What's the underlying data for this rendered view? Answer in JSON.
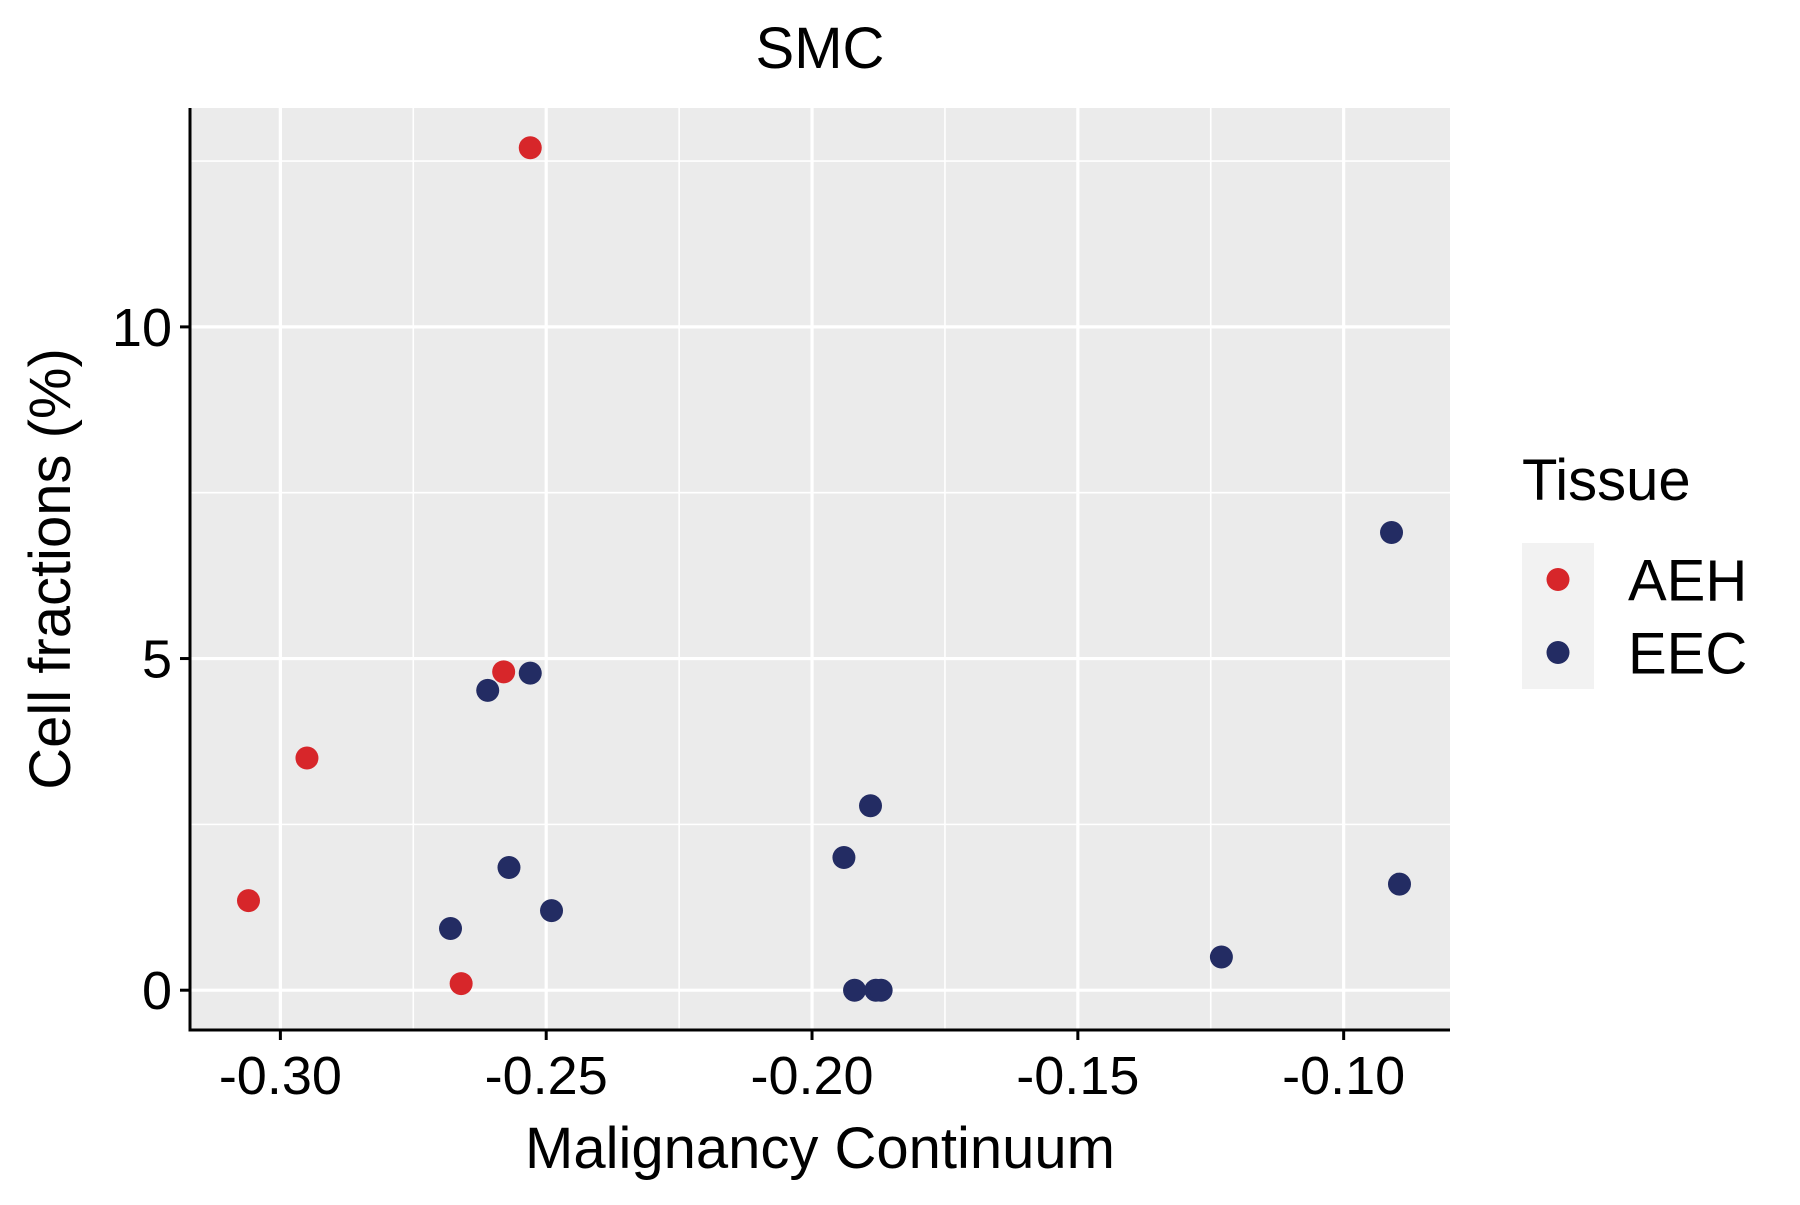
{
  "chart_data": {
    "type": "scatter",
    "title": "SMC",
    "xlabel": "Malignancy Continuum",
    "ylabel": "Cell fractions (%)",
    "xlim": [
      -0.317,
      -0.08
    ],
    "ylim": [
      -0.6,
      13.3
    ],
    "x_ticks": [
      -0.3,
      -0.25,
      -0.2,
      -0.15,
      -0.1
    ],
    "x_tick_labels": [
      "-0.30",
      "-0.25",
      "-0.20",
      "-0.15",
      "-0.10"
    ],
    "y_ticks": [
      0,
      5,
      10
    ],
    "y_tick_labels": [
      "0",
      "5",
      "10"
    ],
    "grid": true,
    "legend": {
      "title": "Tissue",
      "position": "right"
    },
    "colors": {
      "panel_background": "#EBEBEB",
      "grid": "#FFFFFF",
      "axis": "#000000"
    },
    "series": [
      {
        "name": "AEH",
        "color": "#D7262A",
        "points": [
          {
            "x": -0.253,
            "y": 12.7
          },
          {
            "x": -0.258,
            "y": 4.8
          },
          {
            "x": -0.295,
            "y": 3.5
          },
          {
            "x": -0.306,
            "y": 1.35
          },
          {
            "x": -0.266,
            "y": 0.1
          }
        ]
      },
      {
        "name": "EEC",
        "color": "#232C63",
        "points": [
          {
            "x": -0.253,
            "y": 4.78
          },
          {
            "x": -0.261,
            "y": 4.52
          },
          {
            "x": -0.257,
            "y": 1.85
          },
          {
            "x": -0.249,
            "y": 1.2
          },
          {
            "x": -0.268,
            "y": 0.93
          },
          {
            "x": -0.189,
            "y": 2.78
          },
          {
            "x": -0.194,
            "y": 2.0
          },
          {
            "x": -0.192,
            "y": 0.0
          },
          {
            "x": -0.188,
            "y": 0.0
          },
          {
            "x": -0.187,
            "y": 0.0
          },
          {
            "x": -0.123,
            "y": 0.5
          },
          {
            "x": -0.091,
            "y": 6.9
          },
          {
            "x": -0.0895,
            "y": 1.6
          }
        ]
      }
    ]
  }
}
